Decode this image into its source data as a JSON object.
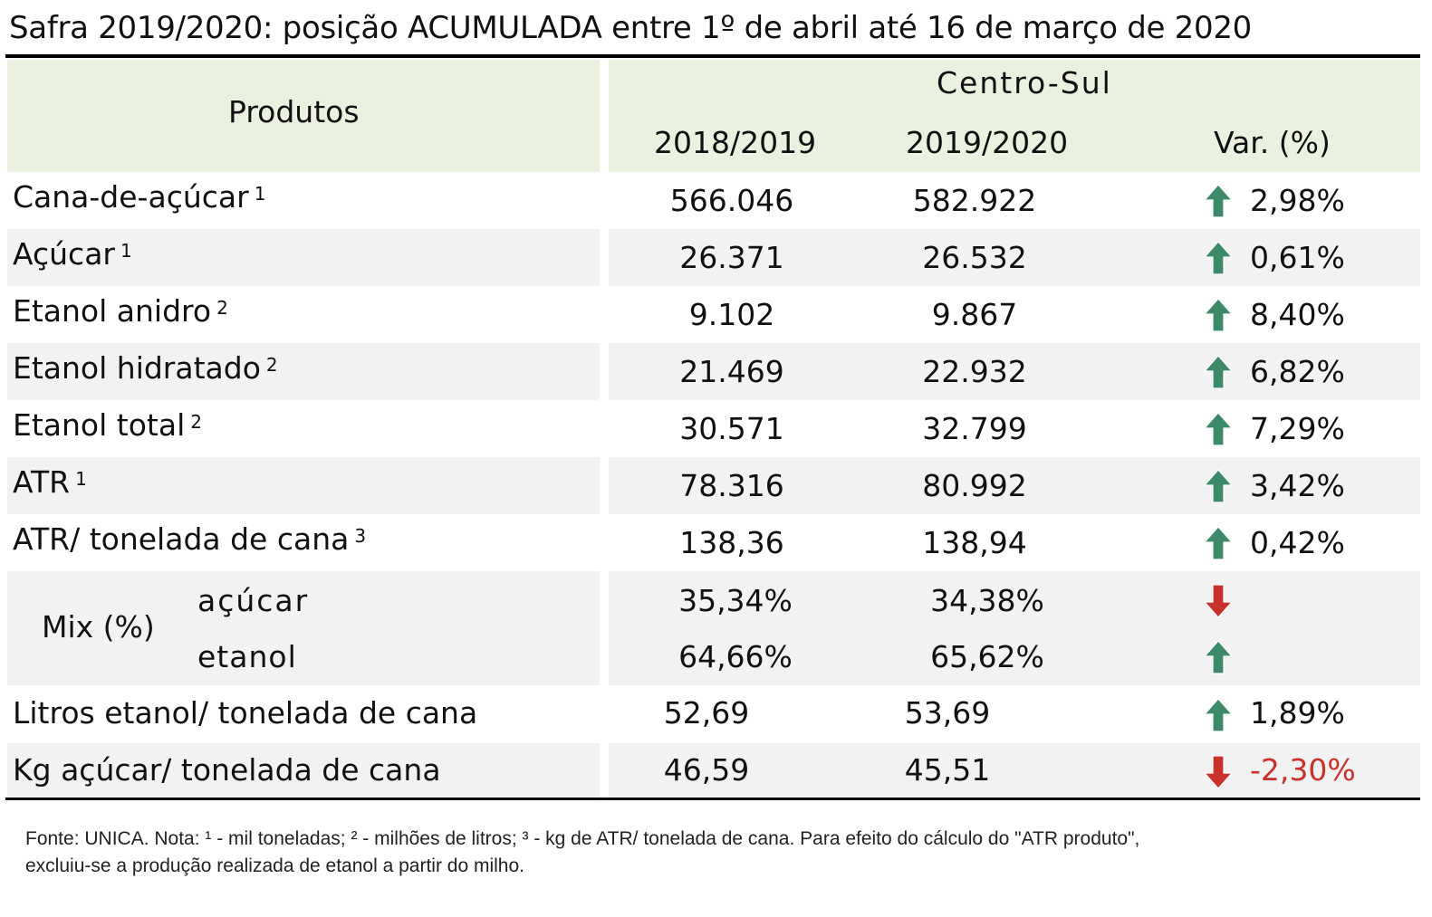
{
  "title": "Safra 2019/2020: posição ACUMULADA entre 1º de abril até 16 de março de 2020",
  "header": {
    "produtos": "Produtos",
    "region": "Centro-Sul",
    "col1": "2018/2019",
    "col2": "2019/2020",
    "col3": "Var. (%)"
  },
  "rows": [
    {
      "label": "Cana-de-açúcar",
      "sup": "1",
      "v1": "566.046",
      "v2": "582.922",
      "var": "2,98%",
      "trend": "up"
    },
    {
      "label": "Açúcar",
      "sup": "1",
      "v1": "26.371",
      "v2": "26.532",
      "var": "0,61%",
      "trend": "up"
    },
    {
      "label": "Etanol anidro",
      "sup": "2",
      "v1": "9.102",
      "v2": "9.867",
      "var": "8,40%",
      "trend": "up"
    },
    {
      "label": "Etanol hidratado",
      "sup": "2",
      "v1": "21.469",
      "v2": "22.932",
      "var": "6,82%",
      "trend": "up"
    },
    {
      "label": "Etanol total",
      "sup": "2",
      "v1": "30.571",
      "v2": "32.799",
      "var": "7,29%",
      "trend": "up"
    },
    {
      "label": "ATR",
      "sup": "1",
      "v1": "78.316",
      "v2": "80.992",
      "var": "3,42%",
      "trend": "up"
    },
    {
      "label": "ATR/ tonelada de cana",
      "sup": "3",
      "v1": "138,36",
      "v2": "138,94",
      "var": "0,42%",
      "trend": "up"
    }
  ],
  "mix": {
    "label": "Mix (%)",
    "acucar": {
      "label": "açúcar",
      "v1": "35,34%",
      "v2": "34,38%",
      "trend": "down"
    },
    "etanol": {
      "label": "etanol",
      "v1": "64,66%",
      "v2": "65,62%",
      "trend": "up"
    }
  },
  "rows2": [
    {
      "label": "Litros etanol/ tonelada de cana",
      "v1": "52,69",
      "v2": "53,69",
      "var": "1,89%",
      "trend": "up"
    },
    {
      "label": "Kg açúcar/ tonelada de cana",
      "v1": "46,59",
      "v2": "45,51",
      "var": "-2,30%",
      "trend": "down"
    }
  ],
  "note": {
    "line1": "Fonte: UNICA. Nota: ¹ - mil toneladas; ² - milhões de litros; ³ - kg de ATR/ tonelada de cana. Para efeito do cálculo do \"ATR produto\",",
    "line2": "excluiu-se a produção realizada de etanol a partir do milho."
  },
  "colors": {
    "up": "#3d8a6a",
    "down": "#c8322a",
    "header_bg": "#ebf1df",
    "stripe": "#f2f2f2"
  }
}
